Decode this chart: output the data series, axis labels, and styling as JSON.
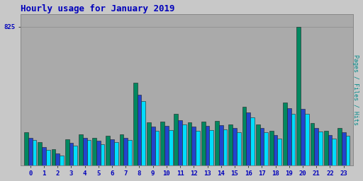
{
  "title": "Hourly usage for January 2019",
  "ylabel": "Pages / Files / Hits",
  "hours": [
    0,
    1,
    2,
    3,
    4,
    5,
    6,
    7,
    8,
    9,
    10,
    11,
    12,
    13,
    14,
    15,
    16,
    17,
    18,
    19,
    20,
    21,
    22,
    23
  ],
  "hits": [
    195,
    140,
    95,
    155,
    185,
    165,
    175,
    185,
    490,
    255,
    260,
    305,
    255,
    260,
    265,
    245,
    350,
    245,
    205,
    375,
    825,
    250,
    205,
    220
  ],
  "files": [
    165,
    110,
    72,
    135,
    165,
    145,
    155,
    165,
    420,
    230,
    235,
    270,
    230,
    235,
    240,
    220,
    315,
    220,
    180,
    340,
    335,
    220,
    180,
    195
  ],
  "pages": [
    150,
    90,
    57,
    115,
    150,
    125,
    140,
    150,
    380,
    205,
    210,
    245,
    205,
    210,
    215,
    195,
    285,
    195,
    160,
    305,
    305,
    200,
    160,
    175
  ],
  "color_hits": "#008860",
  "color_files": "#2244cc",
  "color_pages": "#00ddff",
  "background_color": "#c8c8c8",
  "plot_bg_color": "#aaaaaa",
  "title_color": "#0000bb",
  "ylabel_color": "#008888",
  "tick_color": "#0000bb",
  "ylim_max": 900,
  "ytick_value": 825,
  "bar_width": 0.3
}
